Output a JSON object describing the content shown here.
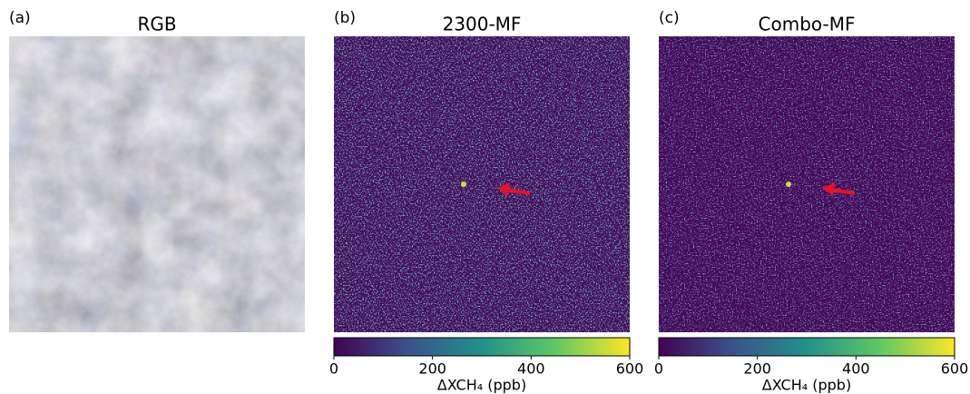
{
  "panels": [
    {
      "label": "(a)",
      "title": "RGB"
    },
    {
      "label": "(b)",
      "title": "2300-MF",
      "colorbar": {
        "lim": [
          0,
          600
        ],
        "ticks": [
          0,
          200,
          400,
          600
        ],
        "label": "ΔXCH₄ (ppb)"
      }
    },
    {
      "label": "(c)",
      "title": "Combo-MF",
      "colorbar": {
        "lim": [
          0,
          600
        ],
        "ticks": [
          0,
          200,
          400,
          600
        ],
        "label": "ΔXCH₄ (ppb)"
      }
    }
  ]
}
